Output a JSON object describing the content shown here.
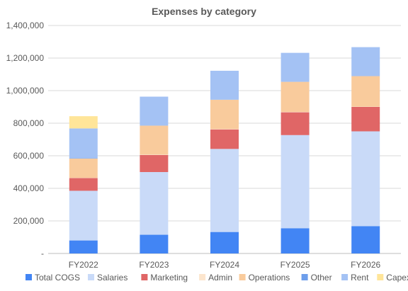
{
  "chart_data": {
    "type": "bar",
    "stacked": true,
    "title": "Expenses by category",
    "xlabel": "",
    "ylabel": "",
    "categories": [
      "FY2022",
      "FY2023",
      "FY2024",
      "FY2025",
      "FY2026"
    ],
    "ylim": [
      0,
      1400000
    ],
    "yticks": [
      {
        "value": 0,
        "label": "-"
      },
      {
        "value": 200000,
        "label": "200,000"
      },
      {
        "value": 400000,
        "label": "400,000"
      },
      {
        "value": 600000,
        "label": "600,000"
      },
      {
        "value": 800000,
        "label": "800,000"
      },
      {
        "value": 1000000,
        "label": "1,000,000"
      },
      {
        "value": 1200000,
        "label": "1,200,000"
      },
      {
        "value": 1400000,
        "label": "1,400,000"
      }
    ],
    "grid": true,
    "legend_position": "bottom",
    "series": [
      {
        "name": "Total COGS",
        "color": "#4285F4",
        "values": [
          80000,
          115000,
          132000,
          155000,
          168000
        ]
      },
      {
        "name": "Salaries",
        "color": "#C9DAF8",
        "values": [
          305000,
          385000,
          510000,
          572000,
          582000
        ]
      },
      {
        "name": "Marketing",
        "color": "#E06666",
        "values": [
          78000,
          105000,
          120000,
          140000,
          150000
        ]
      },
      {
        "name": "Admin",
        "color": "#FCE5CD",
        "values": [
          2000,
          2000,
          2000,
          2000,
          2000
        ]
      },
      {
        "name": "Operations",
        "color": "#F9CB9C",
        "values": [
          118000,
          178000,
          180000,
          185000,
          187000
        ]
      },
      {
        "name": "Other",
        "color": "#6D9EEB",
        "values": [
          3000,
          0,
          0,
          0,
          0
        ]
      },
      {
        "name": "Rent",
        "color": "#A4C2F4",
        "values": [
          182000,
          178000,
          178000,
          178000,
          178000
        ]
      },
      {
        "name": "Capex",
        "color": "#FFE599",
        "values": [
          75000,
          0,
          0,
          0,
          0
        ]
      }
    ]
  }
}
